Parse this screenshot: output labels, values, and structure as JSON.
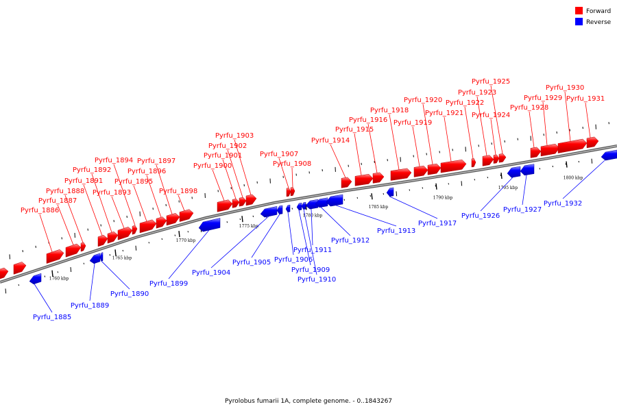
{
  "caption": "Pyrolobus fumarii 1A, complete genome. - 0..1843267",
  "legend": [
    {
      "label": "Forward",
      "color": "#ff0000"
    },
    {
      "label": "Reverse",
      "color": "#0000ff"
    }
  ],
  "colors": {
    "forward": "#ff0000",
    "reverse": "#0000ff",
    "backbone": "#808080"
  },
  "tick_labels": [
    "1760 kbp",
    "1765 kbp",
    "1770 kbp",
    "1775 kbp",
    "1780 kbp",
    "1785 kbp",
    "1790 kbp",
    "1795 kbp",
    "1800 kbp"
  ],
  "genes": [
    {
      "name": "Pyrfu_1885",
      "strand": "reverse"
    },
    {
      "name": "Pyrfu_1886",
      "strand": "forward"
    },
    {
      "name": "Pyrfu_1887",
      "strand": "forward"
    },
    {
      "name": "Pyrfu_1888",
      "strand": "forward"
    },
    {
      "name": "Pyrfu_1889",
      "strand": "reverse"
    },
    {
      "name": "Pyrfu_1890",
      "strand": "reverse"
    },
    {
      "name": "Pyrfu_1891",
      "strand": "forward"
    },
    {
      "name": "Pyrfu_1892",
      "strand": "forward"
    },
    {
      "name": "Pyrfu_1893",
      "strand": "forward"
    },
    {
      "name": "Pyrfu_1894",
      "strand": "forward"
    },
    {
      "name": "Pyrfu_1895",
      "strand": "forward"
    },
    {
      "name": "Pyrfu_1896",
      "strand": "forward"
    },
    {
      "name": "Pyrfu_1897",
      "strand": "forward"
    },
    {
      "name": "Pyrfu_1898",
      "strand": "forward"
    },
    {
      "name": "Pyrfu_1899",
      "strand": "reverse"
    },
    {
      "name": "Pyrfu_1900",
      "strand": "forward"
    },
    {
      "name": "Pyrfu_1901",
      "strand": "forward"
    },
    {
      "name": "Pyrfu_1902",
      "strand": "forward"
    },
    {
      "name": "Pyrfu_1903",
      "strand": "forward"
    },
    {
      "name": "Pyrfu_1904",
      "strand": "reverse"
    },
    {
      "name": "Pyrfu_1905",
      "strand": "reverse"
    },
    {
      "name": "Pyrfu_1906",
      "strand": "reverse"
    },
    {
      "name": "Pyrfu_1907",
      "strand": "forward"
    },
    {
      "name": "Pyrfu_1908",
      "strand": "forward"
    },
    {
      "name": "Pyrfu_1909",
      "strand": "reverse"
    },
    {
      "name": "Pyrfu_1910",
      "strand": "reverse"
    },
    {
      "name": "Pyrfu_1911",
      "strand": "reverse"
    },
    {
      "name": "Pyrfu_1912",
      "strand": "reverse"
    },
    {
      "name": "Pyrfu_1913",
      "strand": "reverse"
    },
    {
      "name": "Pyrfu_1914",
      "strand": "forward"
    },
    {
      "name": "Pyrfu_1915",
      "strand": "forward"
    },
    {
      "name": "Pyrfu_1916",
      "strand": "forward"
    },
    {
      "name": "Pyrfu_1917",
      "strand": "reverse"
    },
    {
      "name": "Pyrfu_1918",
      "strand": "forward"
    },
    {
      "name": "Pyrfu_1919",
      "strand": "forward"
    },
    {
      "name": "Pyrfu_1920",
      "strand": "forward"
    },
    {
      "name": "Pyrfu_1921",
      "strand": "forward"
    },
    {
      "name": "Pyrfu_1922",
      "strand": "forward"
    },
    {
      "name": "Pyrfu_1923",
      "strand": "forward"
    },
    {
      "name": "Pyrfu_1924",
      "strand": "forward"
    },
    {
      "name": "Pyrfu_1925",
      "strand": "forward"
    },
    {
      "name": "Pyrfu_1926",
      "strand": "reverse"
    },
    {
      "name": "Pyrfu_1927",
      "strand": "reverse"
    },
    {
      "name": "Pyrfu_1928",
      "strand": "forward"
    },
    {
      "name": "Pyrfu_1929",
      "strand": "forward"
    },
    {
      "name": "Pyrfu_1930",
      "strand": "forward"
    },
    {
      "name": "Pyrfu_1931",
      "strand": "forward"
    },
    {
      "name": "Pyrfu_1932",
      "strand": "reverse"
    }
  ]
}
